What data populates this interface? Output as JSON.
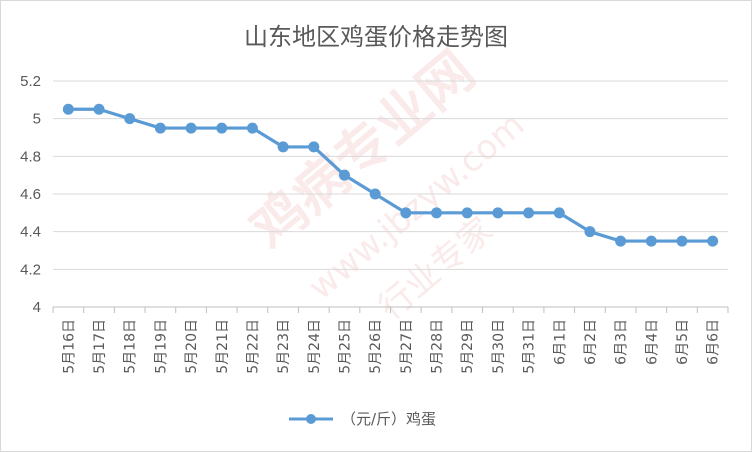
{
  "chart_data": {
    "type": "line",
    "title": "山东地区鸡蛋价格走势图",
    "categories": [
      "5月16日",
      "5月17日",
      "5月18日",
      "5月19日",
      "5月20日",
      "5月21日",
      "5月22日",
      "5月23日",
      "5月24日",
      "5月25日",
      "5月26日",
      "5月27日",
      "5月28日",
      "5月29日",
      "5月30日",
      "5月31日",
      "6月1日",
      "6月2日",
      "6月3日",
      "6月4日",
      "6月5日",
      "6月6日"
    ],
    "series": [
      {
        "name": "（元/斤）鸡蛋",
        "values": [
          5.05,
          5.05,
          5.0,
          4.95,
          4.95,
          4.95,
          4.95,
          4.85,
          4.85,
          4.7,
          4.6,
          4.5,
          4.5,
          4.5,
          4.5,
          4.5,
          4.5,
          4.4,
          4.35,
          4.35,
          4.35,
          4.35
        ],
        "color": "#5b9bd5"
      }
    ],
    "ylim": [
      4,
      5.2
    ],
    "yticks": [
      "4",
      "4.2",
      "4.4",
      "4.6",
      "4.8",
      "5",
      "5.2"
    ],
    "ytick_values": [
      4,
      4.2,
      4.4,
      4.6,
      4.8,
      5,
      5.2
    ],
    "grid": true,
    "legend": "bottom-center",
    "gridColor": "#d9d9d9",
    "axisColor": "#bfbfbf"
  },
  "watermark": {
    "brand": "鸡病专业网",
    "url": "www.jbzyw.com",
    "slogan": "行业专家"
  }
}
